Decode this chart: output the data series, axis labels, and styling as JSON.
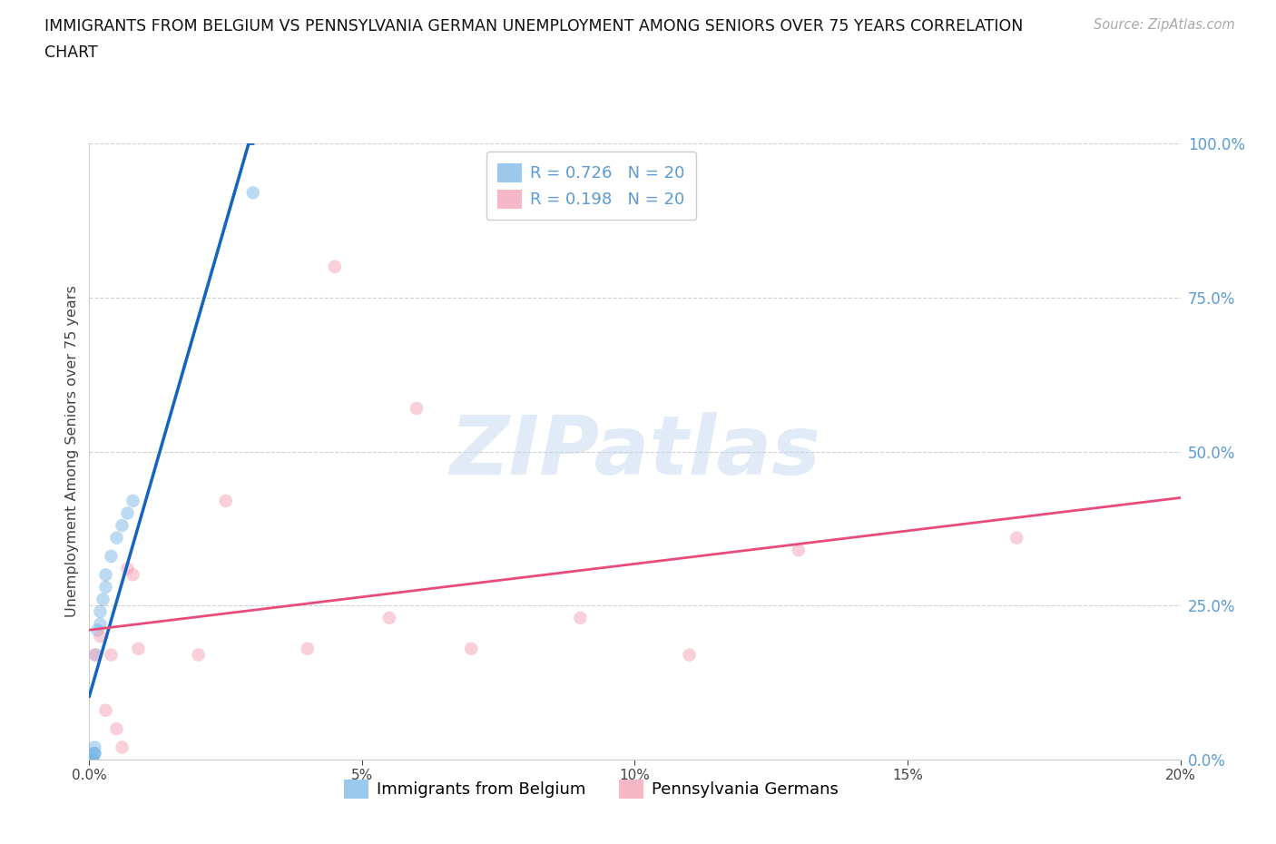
{
  "title_line1": "IMMIGRANTS FROM BELGIUM VS PENNSYLVANIA GERMAN UNEMPLOYMENT AMONG SENIORS OVER 75 YEARS CORRELATION",
  "title_line2": "CHART",
  "source": "Source: ZipAtlas.com",
  "ylabel": "Unemployment Among Seniors over 75 years",
  "xlim": [
    0,
    0.2
  ],
  "ylim": [
    0,
    1.0
  ],
  "background_color": "#ffffff",
  "belgium_x": [
    0.0005,
    0.0005,
    0.0007,
    0.0008,
    0.001,
    0.001,
    0.001,
    0.0012,
    0.0015,
    0.002,
    0.002,
    0.0025,
    0.003,
    0.003,
    0.004,
    0.005,
    0.006,
    0.007,
    0.008,
    0.03
  ],
  "belgium_y": [
    0.0,
    0.0,
    0.0,
    0.01,
    0.01,
    0.01,
    0.02,
    0.17,
    0.21,
    0.22,
    0.24,
    0.26,
    0.28,
    0.3,
    0.33,
    0.36,
    0.38,
    0.4,
    0.42,
    0.92
  ],
  "penn_x": [
    0.001,
    0.002,
    0.003,
    0.004,
    0.005,
    0.006,
    0.007,
    0.008,
    0.009,
    0.02,
    0.025,
    0.04,
    0.045,
    0.055,
    0.06,
    0.07,
    0.09,
    0.11,
    0.13,
    0.17
  ],
  "penn_y": [
    0.17,
    0.2,
    0.08,
    0.17,
    0.05,
    0.02,
    0.31,
    0.3,
    0.18,
    0.17,
    0.42,
    0.18,
    0.8,
    0.23,
    0.57,
    0.18,
    0.23,
    0.17,
    0.34,
    0.36
  ],
  "blue_scatter_color": "#7ab8e8",
  "pink_scatter_color": "#f4a0b5",
  "blue_line_color": "#1565c0",
  "pink_line_color": "#e84b7a",
  "right_tick_color": "#5b9bd5",
  "grid_color": "#d0d0d0",
  "legend_R_N_1": "R = 0.726   N = 20",
  "legend_R_N_2": "R = 0.198   N = 20",
  "legend_label_1": "Immigrants from Belgium",
  "legend_label_2": "Pennsylvania Germans",
  "marker_size": 110,
  "marker_alpha": 0.5,
  "xtick_labels": [
    "0.0%",
    "5%",
    "10%",
    "15%",
    "20%"
  ],
  "xtick_vals": [
    0.0,
    0.05,
    0.1,
    0.15,
    0.2
  ],
  "ytick_right_vals": [
    0.0,
    0.25,
    0.5,
    0.75,
    1.0
  ],
  "ytick_right_labels": [
    "0.0%",
    "25.0%",
    "50.0%",
    "75.0%",
    "100.0%"
  ]
}
